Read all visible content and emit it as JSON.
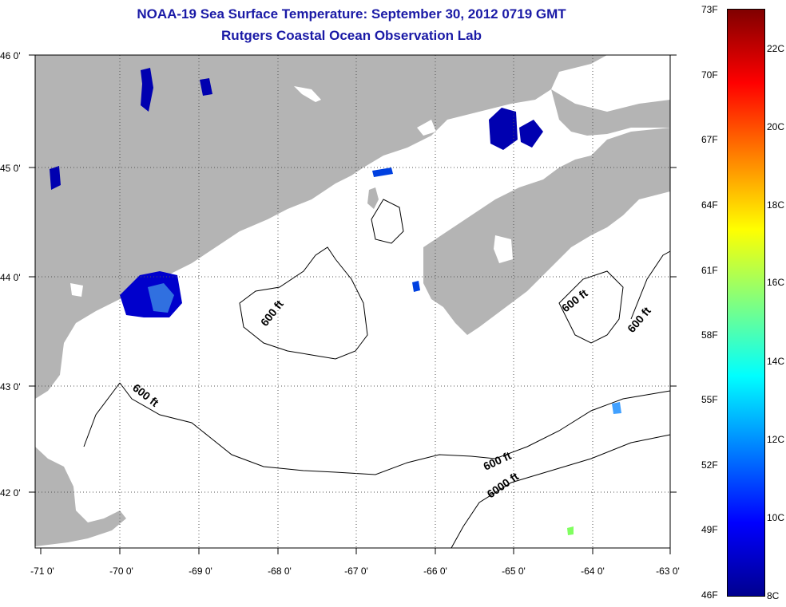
{
  "title": {
    "line1": "NOAA-19 Sea Surface Temperature:  September 30, 2012 0719 GMT",
    "line2": "Rutgers Coastal Ocean Observation Lab"
  },
  "map": {
    "lat_labels": [
      "46 0'",
      "45 0'",
      "44 0'",
      "43 0'",
      "42 0'"
    ],
    "lon_labels": [
      "-71 0'",
      "-70 0'",
      "-69 0'",
      "-68 0'",
      "-67 0'",
      "-66 0'",
      "-65 0'",
      "-64 0'",
      "-63 0'"
    ],
    "contour_labels": [
      "600 ft",
      "600 ft",
      "600 ft",
      "600 ft",
      "600 ft",
      "6000 ft"
    ],
    "land_color": "#b4b4b4",
    "cloud_color": "#ffffff"
  },
  "colorbar": {
    "fahrenheit": [
      "73F",
      "70F",
      "67F",
      "64F",
      "61F",
      "58F",
      "55F",
      "52F",
      "49F",
      "46F"
    ],
    "celsius": [
      "22C",
      "20C",
      "18C",
      "16C",
      "14C",
      "12C",
      "10C",
      "8C"
    ],
    "colors": [
      "#00008f",
      "#0000ff",
      "#0080ff",
      "#00ffff",
      "#80ff80",
      "#ffff00",
      "#ff8000",
      "#ff0000",
      "#800000"
    ]
  }
}
